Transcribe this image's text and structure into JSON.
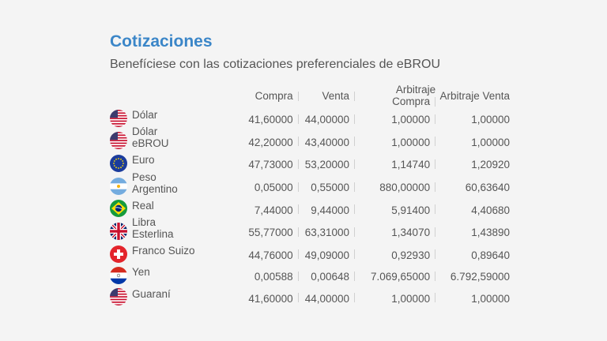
{
  "title": "Cotizaciones",
  "subtitle": "Benefíciese con las cotizaciones preferenciales de eBROU",
  "headers": [
    "Compra",
    "Venta",
    "Arbitraje Compra",
    "Arbitraje Venta"
  ],
  "rows": [
    {
      "name": "Dólar",
      "flag": "usa-flag-icon",
      "compra": "41,60000",
      "venta": "44,00000",
      "arb_compra": "1,00000",
      "arb_venta": "1,00000"
    },
    {
      "name": "Dólar eBROU",
      "flag": "usa-flag-icon",
      "compra": "42,20000",
      "venta": "43,40000",
      "arb_compra": "1,00000",
      "arb_venta": "1,00000"
    },
    {
      "name": "Euro",
      "flag": "eu-flag-icon",
      "compra": "47,73000",
      "venta": "53,20000",
      "arb_compra": "1,14740",
      "arb_venta": "1,20920"
    },
    {
      "name": "Peso Argentino",
      "flag": "argentina-flag-icon",
      "compra": "0,05000",
      "venta": "0,55000",
      "arb_compra": "880,00000",
      "arb_venta": "60,63640"
    },
    {
      "name": "Real",
      "flag": "brazil-flag-icon",
      "compra": "7,44000",
      "venta": "9,44000",
      "arb_compra": "5,91400",
      "arb_venta": "4,40680"
    },
    {
      "name": "Libra Esterlina",
      "flag": "uk-flag-icon",
      "compra": "55,77000",
      "venta": "63,31000",
      "arb_compra": "1,34070",
      "arb_venta": "1,43890"
    },
    {
      "name": "Franco Suizo",
      "flag": "switzerland-flag-icon",
      "compra": "44,76000",
      "venta": "49,09000",
      "arb_compra": "0,92930",
      "arb_venta": "0,89640"
    },
    {
      "name": "Yen",
      "flag": "paraguay-flag-icon",
      "compra": "0,00588",
      "venta": "0,00648",
      "arb_compra": "7.069,65000",
      "arb_venta": "6.792,59000"
    },
    {
      "name": "Guaraní",
      "flag": "usa-flag-icon",
      "compra": "41,60000",
      "venta": "44,00000",
      "arb_compra": "1,00000",
      "arb_venta": "1,00000"
    }
  ]
}
